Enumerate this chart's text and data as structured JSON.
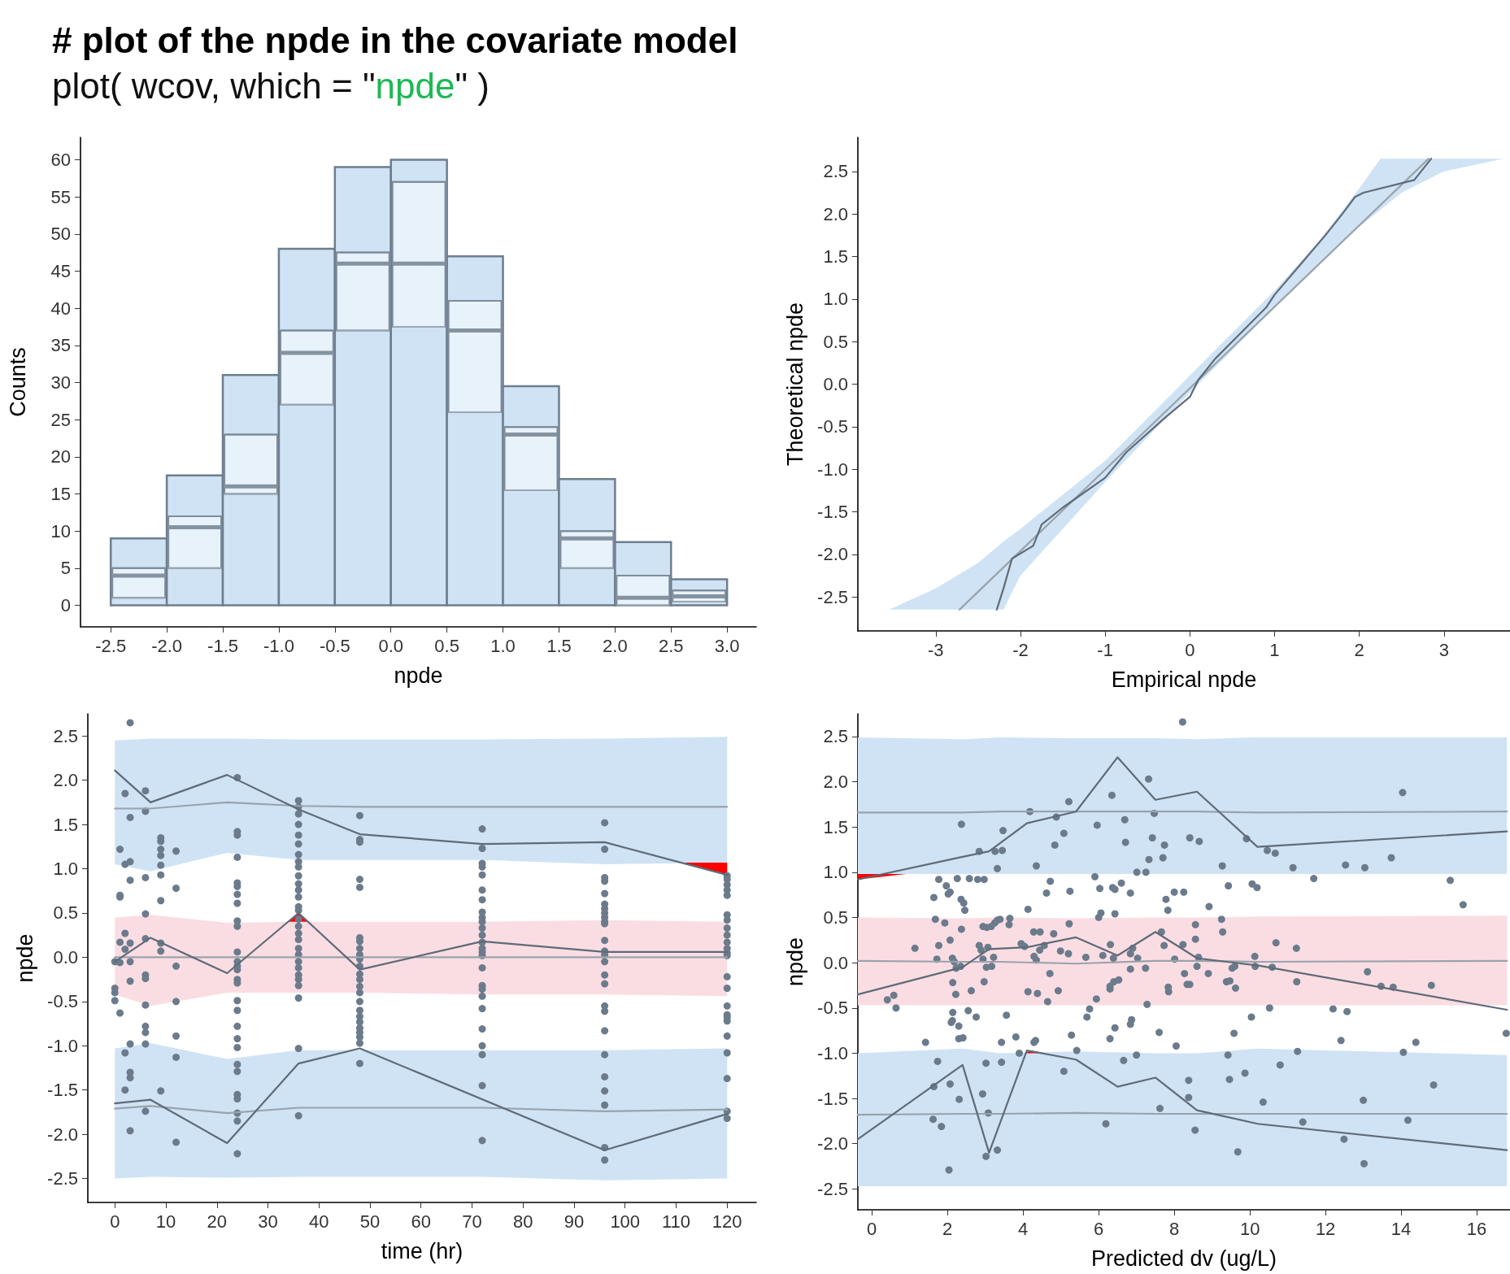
{
  "chart_data": [
    {
      "type": "histogram",
      "title": "# plot of the npde in the covariate model",
      "subtitle": "plot( wcov, which = \"npde\" )",
      "xlabel": "npde",
      "ylabel": "Counts",
      "bins": [
        -2.5,
        -2,
        -1.5,
        -1,
        -0.5,
        0,
        0.5,
        1,
        1.5,
        2,
        2.5,
        3
      ],
      "xlim": [
        -2.77,
        3.26
      ],
      "ylim": [
        -2.9,
        63
      ],
      "xticks": [
        -2.5,
        {
          "value": -2,
          "label": "-2.0"
        },
        -1.5,
        {
          "value": -1,
          "label": "-1.0"
        },
        -0.5,
        {
          "value": 0,
          "label": "0.0"
        },
        0.5,
        {
          "value": 1,
          "label": "1.0"
        },
        1.5,
        {
          "value": 2,
          "label": "2.0"
        },
        2.5,
        {
          "value": 3,
          "label": "3.0"
        }
      ],
      "yticks": [
        0,
        5,
        10,
        15,
        20,
        25,
        30,
        35,
        40,
        45,
        50,
        55,
        60
      ],
      "series": [
        {
          "color": "#cfe3f5",
          "values": [
            9,
            17.5,
            31,
            48,
            59,
            60,
            47,
            29.5,
            17,
            8.5,
            3.5
          ]
        },
        {
          "type": "box",
          "color": "#e8f2fb",
          "x": [
            -2.25,
            -1.75,
            -1.25,
            -0.75,
            -0.25,
            0.25,
            0.75,
            1.25,
            1.75,
            2.25,
            2.75
          ],
          "boxes": [
            {
              "low": 1,
              "q1": 1,
              "median": 4,
              "q3": 5,
              "high": 5
            },
            {
              "low": 5,
              "q1": 5,
              "median": 10.5,
              "q3": 12,
              "high": 12
            },
            {
              "low": 15,
              "q1": 15,
              "median": 16,
              "q3": 23,
              "high": 23
            },
            {
              "low": 27,
              "q1": 27,
              "median": 34,
              "q3": 37,
              "high": 37
            },
            {
              "low": 37,
              "q1": 37,
              "median": 46,
              "q3": 47.5,
              "high": 47.5
            },
            {
              "low": 37.5,
              "q1": 37.5,
              "median": 46,
              "q3": 57,
              "high": 57
            },
            {
              "low": 26,
              "q1": 26,
              "median": 37,
              "q3": 41,
              "high": 41
            },
            {
              "low": 15.5,
              "q1": 15.5,
              "median": 23,
              "q3": 24,
              "high": 24
            },
            {
              "low": 5,
              "q1": 5,
              "median": 9,
              "q3": 10,
              "high": 10
            },
            {
              "low": 0,
              "q1": 0,
              "median": 1,
              "q3": 4,
              "high": 4
            },
            {
              "low": 0.5,
              "q1": 0.5,
              "median": 1.2,
              "q3": 2,
              "high": 2
            }
          ]
        }
      ]
    },
    {
      "type": "line",
      "xlabel": "Empirical npde",
      "ylabel": "Theoretical npde",
      "xlim": [
        -3.92,
        3.78
      ],
      "ylim": [
        -2.9,
        2.9
      ],
      "xticks": [
        -3,
        -2,
        -1,
        0,
        1,
        2,
        3
      ],
      "yticks": [
        -2.5,
        {
          "value": -2,
          "label": "-2.0"
        },
        -1.5,
        {
          "value": -1,
          "label": "-1.0"
        },
        -0.5,
        {
          "value": 0,
          "label": "0.0"
        },
        0.5,
        {
          "value": 1,
          "label": "1.0"
        },
        1.5,
        {
          "value": 2,
          "label": "2.0"
        },
        2.5
      ],
      "series": [
        {
          "color": "#cfe3f5",
          "x": [
            -3.55,
            -3.0,
            -2.5,
            -2.2,
            -2.0,
            -1.5,
            -1.0,
            0,
            1,
            1.5,
            2.0,
            2.25,
            2.5,
            3.0,
            3.7
          ],
          "values": [
            null,
            null,
            null,
            null,
            null,
            null,
            null,
            null,
            null,
            null,
            null,
            null,
            null,
            null,
            null
          ],
          "upper": [
            -2.65,
            -2.4,
            -2.1,
            -1.85,
            -1.7,
            -1.3,
            -0.9,
            0.1,
            1.1,
            1.65,
            2.3,
            2.65,
            2.65,
            2.65,
            2.65
          ],
          "lower": [
            -2.65,
            -2.65,
            -2.65,
            -2.65,
            -2.25,
            -1.7,
            -1.15,
            -0.1,
            0.9,
            1.4,
            1.85,
            2.05,
            2.25,
            2.5,
            2.65
          ]
        },
        {
          "color": "#9aa3ab",
          "x": [
            -2.72,
            2.82
          ],
          "values": [
            -2.65,
            2.65
          ]
        },
        {
          "color": "#5f6b78",
          "x": [
            -2.28,
            -2.2,
            -2.1,
            -1.85,
            -1.75,
            -1.5,
            -1.0,
            -0.75,
            -0.3,
            0,
            0.1,
            0.3,
            0.6,
            0.9,
            1.0,
            1.3,
            1.6,
            1.8,
            1.95,
            2.05,
            2.65,
            2.85
          ],
          "values": [
            -2.65,
            -2.4,
            -2.05,
            -1.9,
            -1.65,
            -1.45,
            -1.1,
            -0.8,
            -0.4,
            -0.15,
            0.05,
            0.3,
            0.6,
            0.9,
            1.05,
            1.4,
            1.75,
            2.0,
            2.2,
            2.25,
            2.4,
            2.65
          ]
        }
      ]
    },
    {
      "type": "scatter",
      "xlabel": "time (hr)",
      "ylabel": "npde",
      "xlim": [
        -5.3,
        125.7
      ],
      "ylim": [
        -2.77,
        2.75
      ],
      "xticks": [
        0,
        10,
        20,
        30,
        40,
        50,
        60,
        70,
        80,
        90,
        100,
        110,
        120
      ],
      "yticks": [
        -2.5,
        {
          "value": -2,
          "label": "-2.0"
        },
        -1.5,
        {
          "value": -1,
          "label": "-1.0"
        },
        -0.5,
        {
          "value": 0,
          "label": "0.0"
        },
        0.5,
        {
          "value": 1,
          "label": "1.0"
        },
        1.5,
        {
          "value": 2,
          "label": "2.0"
        },
        2.5
      ],
      "series": [
        {
          "type": "line",
          "color": "#cfe3f5",
          "x": [
            0,
            7,
            22,
            36,
            48,
            72,
            96,
            120
          ],
          "values": [
            null,
            null,
            null,
            null,
            null,
            null,
            null,
            null
          ],
          "upper": [
            2.45,
            2.47,
            2.47,
            2.46,
            2.46,
            2.46,
            2.47,
            2.49
          ],
          "lower": [
            1.05,
            0.97,
            1.18,
            1.1,
            1.1,
            1.1,
            1.05,
            1.07
          ]
        },
        {
          "type": "line",
          "color": "#fadde3",
          "x": [
            0,
            7,
            22,
            36,
            48,
            72,
            96,
            120
          ],
          "values": [
            null,
            null,
            null,
            null,
            null,
            null,
            null,
            null
          ],
          "upper": [
            0.45,
            0.48,
            0.39,
            0.4,
            0.4,
            0.4,
            0.42,
            0.4
          ],
          "lower": [
            -0.42,
            -0.55,
            -0.4,
            -0.4,
            -0.4,
            -0.42,
            -0.42,
            -0.44
          ]
        },
        {
          "type": "line",
          "color": "#cfe3f5",
          "x": [
            0,
            7,
            22,
            36,
            48,
            72,
            96,
            120
          ],
          "values": [
            null,
            null,
            null,
            null,
            null,
            null,
            null,
            null
          ],
          "upper": [
            -1.03,
            -0.97,
            -1.15,
            -1.05,
            -1.05,
            -1.05,
            -1.05,
            -1.03
          ],
          "lower": [
            -2.5,
            -2.48,
            -2.49,
            -2.48,
            -2.48,
            -2.48,
            -2.52,
            -2.5
          ]
        },
        {
          "type": "line",
          "color": "#ff0000",
          "x": [
            34,
            36,
            38
          ],
          "values": [
            null,
            null,
            null
          ],
          "upper": [
            0.4,
            0.5,
            0.4
          ],
          "lower": [
            0.4,
            0.4,
            0.4
          ]
        },
        {
          "type": "line",
          "color": "#ff0000",
          "x": [
            111,
            120
          ],
          "values": [
            null,
            null
          ],
          "upper": [
            1.07,
            1.07
          ],
          "lower": [
            1.07,
            0.93
          ]
        },
        {
          "type": "line",
          "color": "#9aa3ab",
          "x": [
            0,
            7,
            22,
            36,
            48,
            72,
            96,
            120
          ],
          "values": [
            1.68,
            1.68,
            1.75,
            1.71,
            1.7,
            1.7,
            1.7,
            1.7
          ]
        },
        {
          "type": "line",
          "color": "#9aa3ab",
          "x": [
            0,
            7,
            22,
            36,
            48,
            72,
            96,
            120
          ],
          "values": [
            0,
            0,
            0,
            0,
            0,
            0,
            0,
            0
          ]
        },
        {
          "type": "line",
          "color": "#9aa3ab",
          "x": [
            0,
            7,
            22,
            36,
            48,
            72,
            96,
            120
          ],
          "values": [
            -1.71,
            -1.68,
            -1.76,
            -1.7,
            -1.7,
            -1.7,
            -1.74,
            -1.72
          ]
        },
        {
          "marker": "circle",
          "color": "#6b7b8c",
          "x": [
            0,
            0,
            0,
            0,
            1,
            1,
            1,
            1,
            1,
            1,
            2,
            2,
            2,
            2,
            2,
            2,
            3,
            3,
            3,
            3,
            3,
            3,
            3,
            3,
            3,
            3,
            3,
            6,
            6,
            6,
            6,
            6,
            6,
            6,
            6,
            6,
            6,
            6,
            6,
            9,
            9,
            9,
            9,
            9,
            9,
            9,
            9,
            9,
            9,
            12,
            12,
            12,
            12,
            12,
            12,
            12,
            24,
            24,
            24,
            24,
            24,
            24,
            24,
            24,
            24,
            24,
            24,
            24,
            24,
            24,
            24,
            24,
            24,
            24,
            24,
            24,
            24,
            24,
            24,
            24,
            24,
            24,
            24,
            24,
            36,
            36,
            36,
            36,
            36,
            36,
            36,
            36,
            36,
            36,
            36,
            36,
            36,
            36,
            36,
            36,
            36,
            36,
            36,
            36,
            36,
            36,
            36,
            36,
            36,
            36,
            36,
            36,
            36,
            48,
            48,
            48,
            48,
            48,
            48,
            48,
            48,
            48,
            48,
            48,
            48,
            48,
            48,
            48,
            48,
            48,
            48,
            48,
            48,
            48,
            48,
            48,
            48,
            72,
            72,
            72,
            72,
            72,
            72,
            72,
            72,
            72,
            72,
            72,
            72,
            72,
            72,
            72,
            72,
            72,
            72,
            72,
            72,
            72,
            72,
            72,
            72,
            72,
            72,
            96,
            96,
            96,
            96,
            96,
            96,
            96,
            96,
            96,
            96,
            96,
            96,
            96,
            96,
            96,
            96,
            96,
            96,
            96,
            96,
            96,
            96,
            96,
            96,
            96,
            96,
            120,
            120,
            120,
            120,
            120,
            120,
            120,
            120,
            120,
            120,
            120,
            120,
            120,
            120,
            120,
            120,
            120,
            120,
            120,
            120,
            120,
            120,
            120,
            120
          ],
          "values": [
            -0.35,
            -0.4,
            -0.49,
            -0.05,
            1.22,
            0.68,
            0.7,
            0.17,
            -0.06,
            -0.63,
            1.85,
            1.05,
            0.27,
            0.09,
            -1.08,
            -1.5,
            2.65,
            1.58,
            1.08,
            0.87,
            0.16,
            -0.05,
            -0.27,
            -0.98,
            -1.3,
            -1.36,
            -1.96,
            1.88,
            1.65,
            0.9,
            0.49,
            0.21,
            -0.2,
            -0.24,
            -0.54,
            -0.78,
            -0.85,
            -0.98,
            -1.74,
            1.35,
            1.31,
            1.22,
            1.15,
            1.04,
            0.93,
            0.64,
            0.16,
            0.07,
            -1.51,
            1.2,
            0.78,
            -0.1,
            -0.5,
            -0.89,
            -1.13,
            -2.09,
            2.03,
            1.42,
            1.38,
            1.13,
            0.84,
            0.8,
            0.71,
            0.61,
            0.41,
            0.35,
            0.06,
            -0.05,
            -0.1,
            -0.14,
            -0.25,
            -0.29,
            -0.49,
            -0.6,
            -0.78,
            -0.92,
            -1.02,
            -1.21,
            -1.29,
            -1.55,
            -1.6,
            -1.76,
            -1.85,
            -2.22,
            1.77,
            1.7,
            1.62,
            1.5,
            1.38,
            1.28,
            1.16,
            1.08,
            1.02,
            0.92,
            0.83,
            0.76,
            0.68,
            0.57,
            0.53,
            0.43,
            0.35,
            0.27,
            0.2,
            0.1,
            0.03,
            -0.05,
            -0.12,
            -0.2,
            -0.25,
            -0.32,
            -0.46,
            -1.03,
            -1.79,
            1.6,
            1.33,
            1.3,
            0.88,
            0.79,
            0.22,
            0.18,
            0.1,
            0.03,
            -0.02,
            -0.1,
            -0.19,
            -0.25,
            -0.33,
            -0.4,
            -0.5,
            -0.6,
            -0.67,
            -0.73,
            -0.8,
            -0.85,
            -0.9,
            -0.97,
            -1.2,
            1.45,
            1.23,
            1.06,
            1.02,
            0.93,
            0.76,
            0.65,
            0.51,
            0.45,
            0.4,
            0.33,
            0.25,
            0.17,
            0.1,
            0.06,
            0.02,
            -0.12,
            -0.32,
            -0.36,
            -0.44,
            -0.58,
            -0.81,
            -1.0,
            -1.1,
            -1.45,
            -2.07,
            1.52,
            1.22,
            0.9,
            0.86,
            0.72,
            0.6,
            0.55,
            0.5,
            0.45,
            0.4,
            0.38,
            0.19,
            0.07,
            0.03,
            -0.05,
            -0.2,
            -0.3,
            -0.55,
            -0.61,
            -0.83,
            -1.1,
            -1.35,
            -1.51,
            -1.67,
            -2.15,
            -2.29,
            0.92,
            0.88,
            0.82,
            0.76,
            0.7,
            0.48,
            0.42,
            0.33,
            0.25,
            0.17,
            0.1,
            0.05,
            0.02,
            -0.22,
            -0.35,
            -0.55,
            -0.65,
            -0.68,
            -0.72,
            -0.89,
            -1.08,
            -1.37,
            -1.74,
            -1.82
          ]
        },
        {
          "type": "line",
          "color": "#5f6b78",
          "x": [
            0,
            7,
            22,
            36,
            48,
            72,
            96,
            120
          ],
          "values": [
            2.11,
            1.75,
            2.06,
            1.67,
            1.39,
            1.28,
            1.3,
            0.93
          ]
        },
        {
          "type": "line",
          "color": "#5f6b78",
          "x": [
            0,
            7,
            22,
            36,
            48,
            72,
            96,
            120
          ],
          "values": [
            -0.05,
            0.22,
            -0.18,
            0.5,
            -0.14,
            0.18,
            0.06,
            0.06
          ]
        },
        {
          "type": "line",
          "color": "#5f6b78",
          "x": [
            0,
            7,
            22,
            36,
            48,
            96,
            120
          ],
          "values": [
            -1.65,
            -1.61,
            -2.1,
            -1.2,
            -1.03,
            -2.18,
            -1.77
          ]
        }
      ]
    },
    {
      "type": "scatter",
      "xlabel": "Predicted dv (ug/L)",
      "ylabel": "npde",
      "xlim": [
        -0.37,
        16.88
      ],
      "ylim": [
        -2.73,
        2.75
      ],
      "xticks": [
        0,
        2,
        4,
        6,
        8,
        10,
        12,
        14,
        16
      ],
      "yticks": [
        -2.5,
        {
          "value": -2,
          "label": "-2.0"
        },
        -1.5,
        {
          "value": -1,
          "label": "-1.0"
        },
        -0.5,
        {
          "value": 0,
          "label": "0.0"
        },
        0.5,
        {
          "value": 1,
          "label": "1.0"
        },
        1.5,
        {
          "value": 2,
          "label": "2.0"
        },
        2.5
      ],
      "series": [
        {
          "type": "line",
          "color": "#cfe3f5",
          "x": [
            -0.37,
            2.4,
            3.4,
            5.4,
            7.5,
            8.6,
            10.2,
            16.8
          ],
          "values": [
            null,
            null,
            null,
            null,
            null,
            null,
            null,
            null
          ],
          "upper": [
            2.49,
            2.47,
            2.49,
            2.48,
            2.48,
            2.47,
            2.49,
            2.49
          ],
          "lower": [
            0.98,
            0.98,
            0.98,
            0.98,
            0.98,
            0.98,
            0.98,
            0.98
          ]
        },
        {
          "type": "line",
          "color": "#fadde3",
          "x": [
            -0.37,
            2.4,
            3.4,
            5.4,
            7.5,
            8.6,
            10.2,
            16.8
          ],
          "values": [
            null,
            null,
            null,
            null,
            null,
            null,
            null,
            null
          ],
          "upper": [
            0.5,
            0.49,
            0.5,
            0.49,
            0.5,
            0.5,
            0.51,
            0.52
          ],
          "lower": [
            -0.47,
            -0.47,
            -0.47,
            -0.47,
            -0.47,
            -0.47,
            -0.47,
            -0.47
          ]
        },
        {
          "type": "line",
          "color": "#cfe3f5",
          "x": [
            -0.37,
            2.4,
            3.4,
            5.4,
            7.5,
            8.6,
            10.2,
            16.8
          ],
          "values": [
            null,
            null,
            null,
            null,
            null,
            null,
            null,
            null
          ],
          "upper": [
            -1.0,
            -0.95,
            -1.0,
            -0.98,
            -1.0,
            -1.0,
            -0.95,
            -1.02
          ],
          "lower": [
            -2.47,
            -2.47,
            -2.47,
            -2.47,
            -2.47,
            -2.47,
            -2.47,
            -2.47
          ]
        },
        {
          "type": "line",
          "color": "#ff0000",
          "x": [
            -0.37,
            0.9
          ],
          "values": [
            null,
            null
          ],
          "upper": [
            0.98,
            0.98
          ],
          "lower": [
            0.92,
            0.98
          ]
        },
        {
          "type": "line",
          "color": "#ff0000",
          "x": [
            4.05,
            4.2,
            4.6
          ],
          "values": [
            null,
            null,
            null
          ],
          "upper": [
            -1.0,
            -0.97,
            -1.0
          ],
          "lower": [
            -1.0,
            -1.0,
            -1.0
          ]
        },
        {
          "type": "line",
          "color": "#9aa3ab",
          "x": [
            -0.37,
            2.4,
            3.4,
            5.4,
            7.5,
            8.6,
            10.2,
            16.8
          ],
          "values": [
            1.66,
            1.66,
            1.67,
            1.67,
            1.67,
            1.67,
            1.66,
            1.67
          ]
        },
        {
          "type": "line",
          "color": "#9aa3ab",
          "x": [
            -0.37,
            2.4,
            3.4,
            5.4,
            7.5,
            8.6,
            10.2,
            16.8
          ],
          "values": [
            0.02,
            0.01,
            0.01,
            -0.01,
            0.02,
            0.02,
            0.01,
            0.02
          ]
        },
        {
          "type": "line",
          "color": "#9aa3ab",
          "x": [
            -0.37,
            2.4,
            3.4,
            5.4,
            7.5,
            8.6,
            10.2,
            16.8
          ],
          "values": [
            -1.68,
            -1.67,
            -1.67,
            -1.66,
            -1.67,
            -1.67,
            -1.67,
            -1.67
          ]
        },
        {
          "marker": "circle",
          "color": "#6b7b8c",
          "x": [
            9.27,
            9.43,
            9.91,
            10.06,
            10.19,
            10.46,
            10.67,
            11.14,
            11.69,
            12.53,
            13.04,
            13.74,
            14.04,
            15.3,
            15.64,
            10.13,
            10.14,
            10.69,
            10.59,
            11.23,
            11.24,
            13.11,
            13.47,
            13.79,
            14.8,
            10.04,
            10.52,
            12.2,
            12.57,
            12.41,
            14.39,
            16.78,
            11.26,
            14.06,
            10.8,
            9.87,
            10.35,
            13.0,
            14.86,
            11.4,
            14.18,
            12.49,
            9.68,
            13.02,
            6.35,
            7.32,
            8.22,
            7.47,
            5.96,
            6.69,
            6.71,
            7.42,
            7.74,
            8.41,
            8.66,
            7.33,
            7.7,
            7.01,
            7.25,
            5.9,
            6.03,
            6.37,
            6.43,
            6.6,
            6.84,
            8.0,
            8.25,
            7.78,
            8.92,
            7.83,
            6.0,
            6.06,
            6.43,
            8.56,
            9.25,
            9.28,
            7.66,
            7.73,
            8.23,
            8.56,
            6.11,
            6.31,
            6.39,
            6.84,
            7.03,
            6.9,
            8.01,
            8.64,
            8.6,
            8.9,
            8.27,
            7.24,
            6.84,
            6.53,
            6.4,
            6.3,
            6.3,
            8.34,
            8.41,
            7.84,
            7.85,
            9.47,
            9.62,
            9.38,
            9.53,
            9.6,
            5.94,
            5.76,
            5.69,
            6.87,
            6.84,
            7.28,
            6.43,
            6.3,
            7.6,
            8.05,
            9.58,
            6.66,
            7.0,
            9.42,
            9.46,
            8.38,
            8.38,
            7.62,
            6.19,
            8.55,
            4.18,
            5.21,
            4.88,
            5.08,
            4.84,
            4.35,
            3.47,
            3.45,
            3.32,
            4.72,
            4.62,
            5.24,
            4.13,
            3.65,
            3.63,
            3.39,
            4.28,
            4.45,
            4.81,
            5.22,
            3.95,
            4.04,
            4.56,
            4.44,
            4.99,
            5.2,
            5.66,
            4.29,
            4.35,
            4.71,
            4.93,
            4.13,
            4.38,
            4.65,
            3.56,
            5.28,
            3.43,
            3.81,
            3.9,
            4.29,
            5.08,
            5.42,
            3.43,
            4.33,
            2.37,
            2.84,
            3.26,
            1.77,
            2.26,
            2.58,
            2.8,
            2.97,
            1.97,
            2.07,
            2.02,
            2.36,
            2.43,
            2.46,
            1.64,
            1.68,
            1.93,
            2.37,
            2.94,
            3.04,
            3.16,
            3.25,
            3.32,
            1.77,
            2.07,
            1.14,
            1.72,
            2.84,
            2.89,
            3.07,
            2.94,
            3.22,
            2.13,
            2.18,
            2.23,
            2.35,
            3.03,
            3.17,
            2.97,
            2.14,
            2.22,
            2.63,
            0.41,
            0.58,
            0.64,
            2.14,
            2.13,
            2.1,
            2.3,
            2.55,
            2.76,
            2.3,
            2.41,
            1.42,
            1.74,
            3.02,
            1.64,
            2.07,
            2.31,
            2.93,
            3.08,
            1.62,
            1.84,
            3.02,
            3.32,
            2.04
          ],
          "values": [
            1.07,
            0.85,
            1.37,
            0.87,
            0.83,
            1.24,
            1.21,
            1.05,
            0.93,
            1.08,
            1.05,
            1.16,
            1.88,
            0.91,
            0.64,
            0.07,
            -0.04,
            0.22,
            -0.05,
            0.16,
            -0.21,
            -0.1,
            -0.26,
            -0.27,
            -0.25,
            -0.6,
            -0.5,
            -0.51,
            -0.54,
            -0.86,
            -0.88,
            -0.78,
            -0.98,
            -0.99,
            -1.13,
            -1.22,
            -1.54,
            -1.52,
            -1.35,
            -1.76,
            -1.74,
            -1.95,
            -2.09,
            -2.22,
            1.85,
            2.03,
            2.66,
            1.65,
            1.52,
            1.58,
            1.33,
            1.38,
            1.3,
            1.38,
            1.34,
            1.14,
            1.16,
            1.0,
            1.0,
            0.95,
            0.82,
            0.83,
            0.81,
            0.88,
            0.77,
            0.78,
            0.78,
            0.7,
            0.62,
            0.58,
            0.5,
            0.55,
            0.54,
            0.42,
            0.48,
            0.34,
            0.34,
            0.19,
            0.2,
            0.26,
            0.08,
            0.2,
            0.05,
            0.1,
            0.05,
            0.16,
            0.04,
            0.06,
            -0.04,
            -0.12,
            -0.12,
            -0.06,
            -0.07,
            -0.19,
            -0.21,
            -0.26,
            -0.29,
            -0.24,
            -0.24,
            -0.27,
            -0.32,
            -0.2,
            -0.28,
            -0.21,
            -0.06,
            -0.04,
            -0.4,
            -0.51,
            -0.6,
            -0.63,
            -0.68,
            -0.46,
            -0.72,
            -0.84,
            -0.77,
            -0.92,
            -0.78,
            -1.08,
            -1.02,
            -1.02,
            -1.29,
            -1.3,
            -1.49,
            -1.61,
            -1.78,
            -1.85,
            1.67,
            1.78,
            1.61,
            1.43,
            1.3,
            1.07,
            1.46,
            1.24,
            1.04,
            0.9,
            0.77,
            0.79,
            0.59,
            0.49,
            0.42,
            0.48,
            0.34,
            0.34,
            0.32,
            0.43,
            0.21,
            0.18,
            0.19,
            0.14,
            0.13,
            0.1,
            0.06,
            0.07,
            0.03,
            -0.12,
            -0.31,
            -0.32,
            -0.34,
            -0.43,
            -0.58,
            -0.8,
            -0.88,
            -0.82,
            -1.0,
            -0.88,
            -1.2,
            -0.97,
            -1.1,
            -0.86,
            1.53,
            1.23,
            1.23,
            0.92,
            0.93,
            0.93,
            0.92,
            0.92,
            0.85,
            0.78,
            0.76,
            0.7,
            0.66,
            0.58,
            0.72,
            0.48,
            0.44,
            0.37,
            0.4,
            0.39,
            0.4,
            0.44,
            0.47,
            0.19,
            0.25,
            0.16,
            0.04,
            0.19,
            0.14,
            0.17,
            0.04,
            0.06,
            0.05,
            0.01,
            -0.06,
            -0.04,
            -0.05,
            -0.04,
            -0.21,
            -0.22,
            -0.35,
            -0.31,
            -0.41,
            -0.36,
            -0.5,
            -0.55,
            -0.64,
            -0.66,
            -0.7,
            -0.53,
            -0.6,
            -0.84,
            -0.83,
            -0.88,
            -1.09,
            -1.11,
            -1.37,
            -1.34,
            -1.51,
            -1.45,
            -1.66,
            -1.73,
            -1.81,
            -2.14,
            -2.07,
            -2.29
          ]
        },
        {
          "type": "line",
          "color": "#5f6b78",
          "x": [
            -0.37,
            2.4,
            3.1,
            4.1,
            5.4,
            6.5,
            7.5,
            8.6,
            10.2,
            16.8
          ],
          "values": [
            0.92,
            1.17,
            1.23,
            1.54,
            1.67,
            2.27,
            1.8,
            1.89,
            1.28,
            1.45
          ]
        },
        {
          "type": "line",
          "color": "#5f6b78",
          "x": [
            -0.37,
            2.4,
            3.1,
            4.1,
            5.4,
            6.5,
            7.5,
            8.6,
            10.2,
            16.8
          ],
          "values": [
            -0.35,
            -0.05,
            0.15,
            0.17,
            0.28,
            0.08,
            0.34,
            0.05,
            -0.03,
            -0.52
          ]
        },
        {
          "type": "line",
          "color": "#5f6b78",
          "x": [
            -0.37,
            2.4,
            3.1,
            4.1,
            5.4,
            6.5,
            7.5,
            8.6,
            10.2,
            16.8
          ],
          "values": [
            -1.95,
            -1.13,
            -2.1,
            -0.97,
            -1.07,
            -1.37,
            -1.27,
            -1.63,
            -1.78,
            -2.07
          ]
        }
      ]
    }
  ]
}
